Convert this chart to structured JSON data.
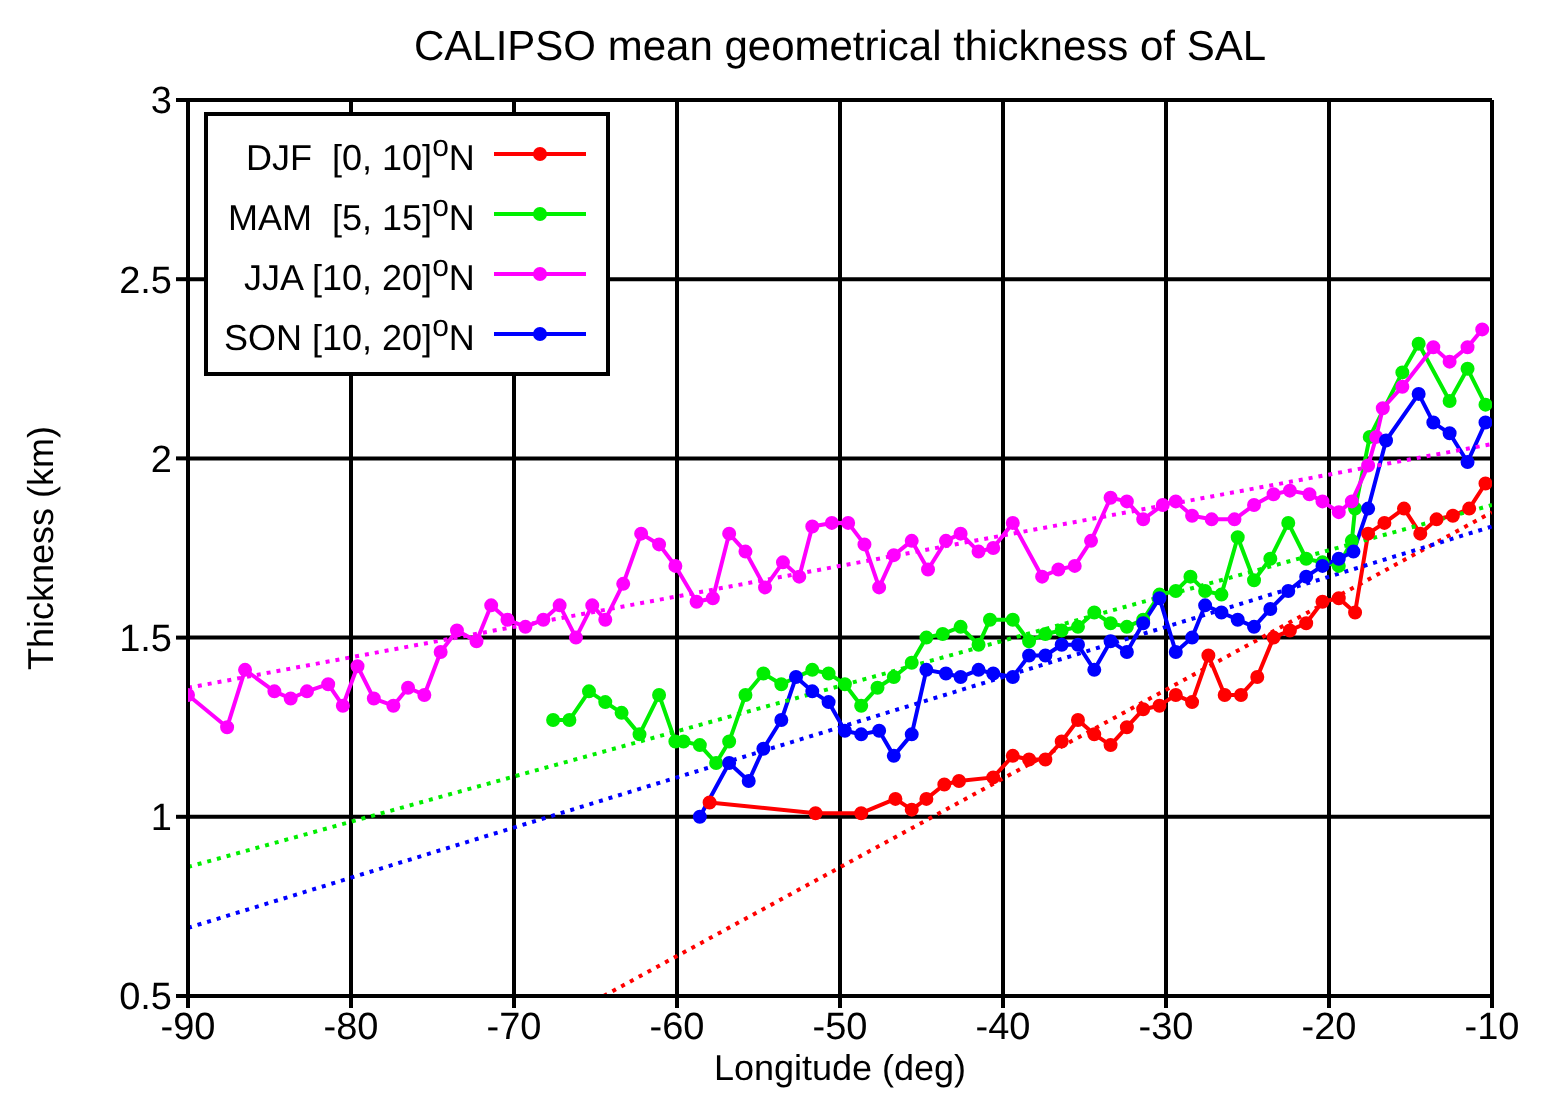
{
  "chart_data": {
    "type": "line",
    "title": "CALIPSO mean geometrical thickness of SAL",
    "xlabel": "Longitude (deg)",
    "ylabel": "Thickness (km)",
    "xlim": [
      -90,
      -10
    ],
    "xticks": [
      -90,
      -80,
      -70,
      -60,
      -50,
      -40,
      -30,
      -20,
      -10
    ],
    "ylim": [
      0.5,
      3
    ],
    "yticks": [
      0.5,
      1,
      1.5,
      2,
      2.5,
      3
    ],
    "grid": true,
    "legend": "top left",
    "marker": "circle",
    "line_style": "solid",
    "series": [
      {
        "name": "DJF  [0, 10]$^{o}$N",
        "color": "#ff0000",
        "x": [
          -58,
          -51.5,
          -48.7,
          -46.6,
          -45.6,
          -44.7,
          -43.6,
          -42.7,
          -40.6,
          -39.4,
          -38.4,
          -37.4,
          -36.4,
          -35.4,
          -34.4,
          -33.4,
          -32.4,
          -31.4,
          -30.4,
          -29.4,
          -28.4,
          -27.4,
          -26.4,
          -25.4,
          -24.4,
          -23.4,
          -22.4,
          -21.4,
          -20.4,
          -19.4,
          -18.4,
          -17.6,
          -16.6,
          -15.4,
          -14.4,
          -13.4,
          -12.4,
          -11.4,
          -10.4
        ],
        "values": [
          1.04,
          1.01,
          1.01,
          1.05,
          1.02,
          1.05,
          1.09,
          1.1,
          1.11,
          1.17,
          1.16,
          1.16,
          1.21,
          1.27,
          1.23,
          1.2,
          1.25,
          1.3,
          1.31,
          1.34,
          1.32,
          1.45,
          1.34,
          1.34,
          1.39,
          1.5,
          1.52,
          1.54,
          1.6,
          1.61,
          1.57,
          1.79,
          1.82,
          1.86,
          1.79,
          1.83,
          1.84,
          1.86,
          1.93
        ]
      },
      {
        "name": "MAM  [5, 15]$^{o}$N",
        "color": "#00ee00",
        "x": [
          -67.6,
          -66.6,
          -65.4,
          -64.4,
          -63.4,
          -62.3,
          -61.1,
          -60.1,
          -59.6,
          -58.6,
          -57.6,
          -56.8,
          -55.8,
          -54.7,
          -53.6,
          -51.7,
          -50.7,
          -49.7,
          -48.7,
          -47.7,
          -46.7,
          -45.6,
          -44.7,
          -43.7,
          -42.6,
          -41.5,
          -40.8,
          -39.4,
          -38.4,
          -37.4,
          -36.4,
          -35.4,
          -34.4,
          -33.4,
          -32.4,
          -31.4,
          -30.4,
          -29.4,
          -28.5,
          -27.6,
          -26.6,
          -25.6,
          -24.6,
          -23.6,
          -22.5,
          -21.4,
          -20.4,
          -19.4,
          -18.6,
          -18.4,
          -17.5,
          -15.5,
          -14.5,
          -12.6,
          -11.5,
          -10.4
        ],
        "values": [
          1.27,
          1.27,
          1.35,
          1.32,
          1.29,
          1.23,
          1.34,
          1.21,
          1.21,
          1.2,
          1.15,
          1.21,
          1.34,
          1.4,
          1.37,
          1.41,
          1.4,
          1.37,
          1.31,
          1.36,
          1.39,
          1.43,
          1.5,
          1.51,
          1.53,
          1.48,
          1.55,
          1.55,
          1.49,
          1.51,
          1.52,
          1.53,
          1.57,
          1.54,
          1.53,
          1.55,
          1.62,
          1.63,
          1.67,
          1.63,
          1.62,
          1.78,
          1.66,
          1.72,
          1.82,
          1.72,
          1.71,
          1.7,
          1.77,
          1.86,
          2.06,
          2.24,
          2.32,
          2.16,
          2.25,
          2.15
        ]
      },
      {
        "name": "JJA [10, 20]$^{o}$N",
        "color": "#ff00ff",
        "x": [
          -90,
          -87.6,
          -86.5,
          -84.7,
          -83.7,
          -82.7,
          -81.4,
          -80.5,
          -79.6,
          -78.6,
          -77.4,
          -76.5,
          -75.5,
          -74.5,
          -73.5,
          -72.3,
          -71.4,
          -70.4,
          -69.3,
          -68.2,
          -67.2,
          -66.2,
          -65.2,
          -64.4,
          -63.3,
          -62.2,
          -61.1,
          -60.1,
          -58.8,
          -57.8,
          -56.8,
          -55.8,
          -54.6,
          -53.5,
          -52.5,
          -51.7,
          -50.5,
          -49.5,
          -48.5,
          -47.6,
          -46.7,
          -45.6,
          -44.6,
          -43.5,
          -42.6,
          -41.5,
          -40.6,
          -39.4,
          -37.6,
          -36.6,
          -35.6,
          -34.6,
          -33.4,
          -32.4,
          -31.4,
          -30.2,
          -29.4,
          -28.4,
          -27.2,
          -25.8,
          -24.6,
          -23.4,
          -22.4,
          -21.2,
          -20.4,
          -19.4,
          -18.6,
          -17.6,
          -17.1,
          -16.7,
          -15.5,
          -13.6,
          -12.6,
          -11.5,
          -10.6
        ],
        "values": [
          1.34,
          1.25,
          1.41,
          1.35,
          1.33,
          1.35,
          1.37,
          1.31,
          1.42,
          1.33,
          1.31,
          1.36,
          1.34,
          1.46,
          1.52,
          1.49,
          1.59,
          1.55,
          1.53,
          1.55,
          1.59,
          1.5,
          1.59,
          1.55,
          1.65,
          1.79,
          1.76,
          1.7,
          1.6,
          1.61,
          1.79,
          1.74,
          1.64,
          1.71,
          1.67,
          1.81,
          1.82,
          1.82,
          1.76,
          1.64,
          1.73,
          1.77,
          1.69,
          1.77,
          1.79,
          1.74,
          1.75,
          1.82,
          1.67,
          1.69,
          1.7,
          1.77,
          1.89,
          1.88,
          1.83,
          1.87,
          1.88,
          1.84,
          1.83,
          1.83,
          1.87,
          1.9,
          1.91,
          1.9,
          1.88,
          1.85,
          1.88,
          1.98,
          2.06,
          2.14,
          2.2,
          2.31,
          2.27,
          2.31,
          2.36
        ]
      },
      {
        "name": "SON [10, 20]$^{o}$N",
        "color": "#0000ff",
        "x": [
          -58.6,
          -56.8,
          -55.6,
          -54.7,
          -53.6,
          -52.7,
          -51.7,
          -50.7,
          -49.7,
          -48.7,
          -47.6,
          -46.7,
          -45.6,
          -44.7,
          -43.5,
          -42.6,
          -41.5,
          -40.6,
          -39.4,
          -38.4,
          -37.4,
          -36.4,
          -35.4,
          -34.4,
          -33.4,
          -32.4,
          -31.4,
          -30.4,
          -29.4,
          -28.4,
          -27.6,
          -26.6,
          -25.6,
          -24.6,
          -23.6,
          -22.5,
          -21.4,
          -20.4,
          -19.4,
          -18.5,
          -17.6,
          -16.5,
          -14.5,
          -13.6,
          -12.6,
          -11.5,
          -10.4
        ],
        "values": [
          1.0,
          1.15,
          1.1,
          1.19,
          1.27,
          1.39,
          1.35,
          1.32,
          1.24,
          1.23,
          1.24,
          1.17,
          1.23,
          1.41,
          1.4,
          1.39,
          1.41,
          1.4,
          1.39,
          1.45,
          1.45,
          1.48,
          1.48,
          1.41,
          1.49,
          1.46,
          1.54,
          1.61,
          1.46,
          1.5,
          1.59,
          1.57,
          1.55,
          1.53,
          1.58,
          1.63,
          1.67,
          1.7,
          1.72,
          1.74,
          1.86,
          2.05,
          2.18,
          2.1,
          2.07,
          1.99,
          2.1
        ]
      },
      {
        "type": "line",
        "color": "#ff0000",
        "line_style": "dotted",
        "marker": "none",
        "x": [
          -64.5,
          -10
        ],
        "values": [
          0.5,
          1.85
        ]
      },
      {
        "type": "line",
        "color": "#00ee00",
        "line_style": "dotted",
        "marker": "none",
        "x": [
          -90,
          -10
        ],
        "values": [
          0.86,
          1.87
        ]
      },
      {
        "type": "line",
        "color": "#ff00ff",
        "line_style": "dotted",
        "marker": "none",
        "x": [
          -90,
          -10
        ],
        "values": [
          1.36,
          2.04
        ]
      },
      {
        "type": "line",
        "color": "#0000ff",
        "line_style": "dotted",
        "marker": "none",
        "x": [
          -90,
          -10
        ],
        "values": [
          0.69,
          1.81
        ]
      }
    ]
  }
}
